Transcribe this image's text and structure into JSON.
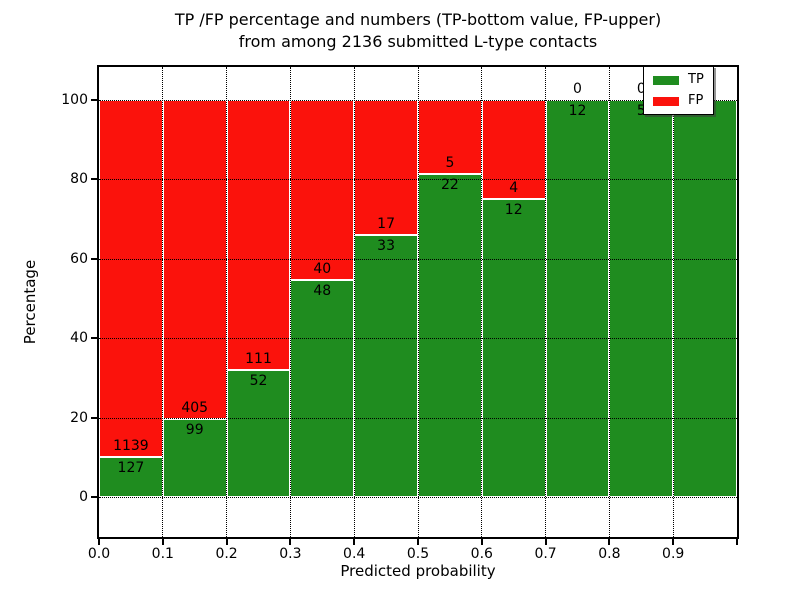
{
  "figure": {
    "title_line1": "TP /FP percentage and numbers (TP-bottom value, FP-upper)",
    "title_line2": "from among 2136 submitted L-type contacts"
  },
  "axes": {
    "xlabel": "Predicted probability",
    "ylabel": "Percentage",
    "x_tick_labels": [
      "0.0",
      "0.1",
      "0.2",
      "0.3",
      "0.4",
      "0.5",
      "0.6",
      "0.7",
      "0.8",
      "0.9"
    ],
    "y_tick_labels": [
      "0",
      "20",
      "40",
      "60",
      "80",
      "100"
    ],
    "y_tick_values": [
      0,
      20,
      40,
      60,
      80,
      100
    ],
    "xlim": [
      0.0,
      1.0
    ],
    "ylim": [
      -10,
      108.5
    ]
  },
  "legend": {
    "position": "upper-right",
    "items": [
      {
        "label": "TP",
        "color": "#1f8c1f"
      },
      {
        "label": "FP",
        "color": "#fb120c"
      }
    ]
  },
  "colors": {
    "tp": "#1f8c1f",
    "fp": "#fb120c",
    "grid": "#000000",
    "background": "#ffffff"
  },
  "chart_data": {
    "type": "bar",
    "stacked": true,
    "normalized_to_percent": true,
    "title": "TP /FP percentage and numbers (TP-bottom value, FP-upper) from among 2136 submitted L-type contacts",
    "xlabel": "Predicted probability",
    "ylabel": "Percentage",
    "total_contacts": 2136,
    "bin_edges": [
      0.0,
      0.1,
      0.2,
      0.3,
      0.4,
      0.5,
      0.6,
      0.7,
      0.8,
      0.9,
      1.0
    ],
    "categories": [
      "0.0-0.1",
      "0.1-0.2",
      "0.2-0.3",
      "0.3-0.4",
      "0.4-0.5",
      "0.5-0.6",
      "0.6-0.7",
      "0.7-0.8",
      "0.8-0.9",
      "0.9-1.0"
    ],
    "series": [
      {
        "name": "TP",
        "color": "#1f8c1f",
        "counts": [
          127,
          99,
          52,
          48,
          33,
          22,
          12,
          12,
          5,
          5
        ],
        "percent": [
          10.03,
          19.64,
          31.9,
          54.55,
          66.0,
          81.48,
          75.0,
          100.0,
          100.0,
          100.0
        ]
      },
      {
        "name": "FP",
        "color": "#fb120c",
        "counts": [
          1139,
          405,
          111,
          40,
          17,
          5,
          4,
          0,
          0,
          0
        ],
        "percent": [
          89.97,
          80.36,
          68.1,
          45.45,
          34.0,
          18.52,
          25.0,
          0.0,
          0.0,
          0.0
        ]
      }
    ],
    "grid": {
      "style": "dotted",
      "color": "#000000"
    },
    "ylim": [
      -10,
      108.5
    ],
    "note": "Labels show FP count above the TP/FP boundary and TP count below it; last bin labels (0 and 5) are hidden behind the legend"
  }
}
